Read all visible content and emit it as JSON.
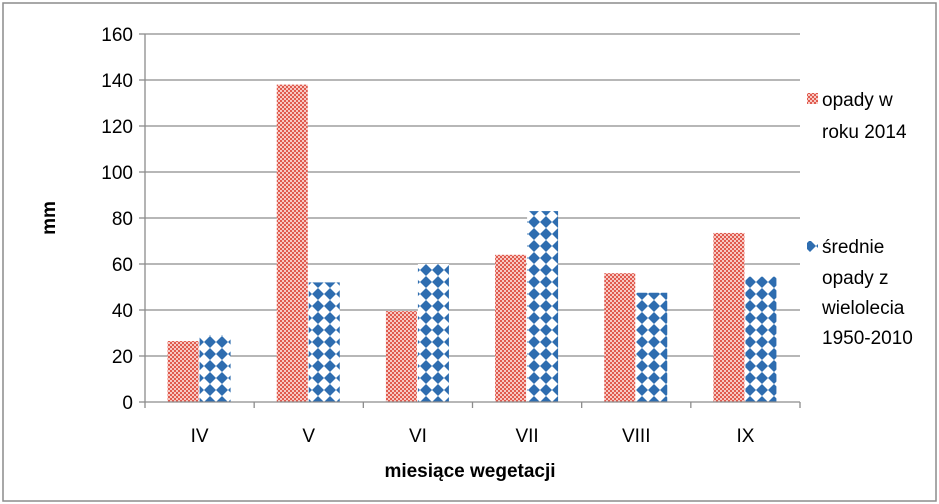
{
  "chart_data": {
    "type": "bar",
    "categories": [
      "IV",
      "V",
      "VI",
      "VII",
      "VIII",
      "IX"
    ],
    "series": [
      {
        "name": "opady w roku 2014",
        "values": [
          26.5,
          138,
          39.5,
          64,
          56,
          73.5
        ],
        "color": "#e8746a",
        "pattern": "dotted"
      },
      {
        "name": "średnie opady z wielolecia 1950-2010",
        "values": [
          29,
          52,
          60,
          83,
          47.5,
          54.5
        ],
        "color": "#2e6db0",
        "pattern": "diamond"
      }
    ],
    "xlabel": "miesiące wegetacji",
    "ylabel": "mm",
    "ylim": [
      0,
      160
    ],
    "yticks": [
      0,
      20,
      40,
      60,
      80,
      100,
      120,
      140,
      160
    ],
    "grid": true,
    "legend_position": "right"
  }
}
